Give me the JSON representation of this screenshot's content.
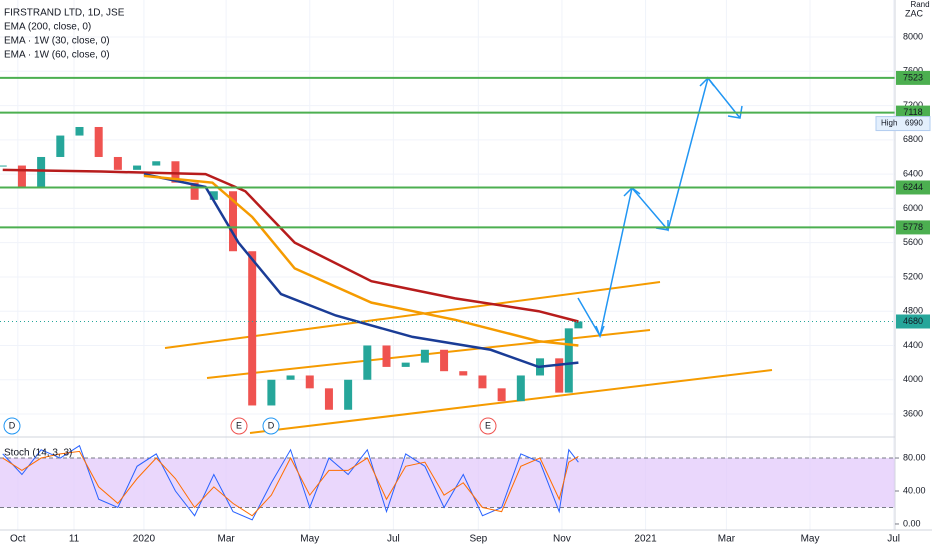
{
  "chart_data": {
    "type": "candlestick",
    "title": "FIRSTRAND LTD, 1D, JSE",
    "currency": "Rand",
    "unit": "ZAC",
    "x": [
      "2019-09-20",
      "2019-10-04",
      "2019-10-18",
      "2019-11-01",
      "2019-11-15",
      "2019-11-29",
      "2019-12-13",
      "2019-12-27",
      "2020-01-10",
      "2020-01-24",
      "2020-02-07",
      "2020-02-21",
      "2020-03-06",
      "2020-03-20",
      "2020-04-03",
      "2020-04-17",
      "2020-05-01",
      "2020-05-15",
      "2020-05-29",
      "2020-06-12",
      "2020-06-26",
      "2020-07-10",
      "2020-07-24",
      "2020-08-07",
      "2020-08-21",
      "2020-09-04",
      "2020-09-18",
      "2020-10-02",
      "2020-10-16",
      "2020-10-30",
      "2020-11-06",
      "2020-11-13"
    ],
    "values": [
      6500,
      6250,
      6600,
      6850,
      6950,
      6600,
      6450,
      6500,
      6550,
      6300,
      6100,
      6200,
      5500,
      3700,
      4000,
      4050,
      3900,
      3650,
      4000,
      4400,
      4150,
      4200,
      4350,
      4100,
      4050,
      3900,
      3750,
      4050,
      4250,
      3850,
      4600,
      4680
    ],
    "up_color": "#26a69a",
    "down_color": "#ef5350",
    "xlim": [
      "2019-09-18",
      "2021-07-02"
    ],
    "xticks": [
      {
        "value": "2019-10-01",
        "label": "Oct"
      },
      {
        "value": "2019-11-11",
        "label": "11"
      },
      {
        "value": "2020-01-01",
        "label": "2020"
      },
      {
        "value": "2020-03-01",
        "label": "Mar"
      },
      {
        "value": "2020-05-01",
        "label": "May"
      },
      {
        "value": "2020-07-01",
        "label": "Jul"
      },
      {
        "value": "2020-09-01",
        "label": "Sep"
      },
      {
        "value": "2020-11-01",
        "label": "Nov"
      },
      {
        "value": "2021-01-01",
        "label": "2021"
      },
      {
        "value": "2021-03-01",
        "label": "Mar"
      },
      {
        "value": "2021-05-01",
        "label": "May"
      },
      {
        "value": "2021-07-01",
        "label": "Jul"
      }
    ],
    "ylim": [
      3332,
      8432
    ],
    "yticks": [
      3600,
      4000,
      4400,
      4800,
      5200,
      5600,
      6000,
      6400,
      6800,
      7200,
      7600,
      8000
    ],
    "grid": true,
    "series": [
      {
        "name": "EMA (200, close, 0)",
        "color": "#b71c1c",
        "x": [
          "2019-09-20",
          "2019-12-01",
          "2020-02-15",
          "2020-03-15",
          "2020-04-20",
          "2020-06-15",
          "2020-08-15",
          "2020-10-15",
          "2020-11-13"
        ],
        "values": [
          6450,
          6430,
          6400,
          6200,
          5600,
          5150,
          4950,
          4800,
          4680
        ]
      },
      {
        "name": "EMA · 1W (30, close, 0)",
        "color": "#1a3c96",
        "x": [
          "2020-01-01",
          "2020-02-15",
          "2020-03-10",
          "2020-04-10",
          "2020-05-20",
          "2020-07-15",
          "2020-09-10",
          "2020-10-15",
          "2020-11-13"
        ],
        "values": [
          6400,
          6250,
          5600,
          5000,
          4750,
          4500,
          4350,
          4150,
          4200
        ]
      },
      {
        "name": "EMA · 1W (60, close, 0)",
        "color": "#f59b00",
        "x": [
          "2020-01-01",
          "2020-02-20",
          "2020-03-20",
          "2020-04-20",
          "2020-06-15",
          "2020-08-15",
          "2020-10-15",
          "2020-11-13"
        ],
        "values": [
          6380,
          6300,
          5900,
          5300,
          4900,
          4700,
          4450,
          4400
        ]
      }
    ],
    "levels": [
      7523,
      7118,
      6244,
      5778
    ],
    "level_color": "#4caf50",
    "last_price": 4680,
    "high": {
      "label": "High",
      "value": 6990
    },
    "events": [
      "D",
      "E",
      "D",
      "E"
    ],
    "stoch": {
      "title": "Stoch (14, 3, 3)",
      "ylim": [
        -7.3,
        105.5
      ],
      "yticks": [
        {
          "value": 0,
          "label": "0.00"
        },
        {
          "value": 40,
          "label": "40.00"
        },
        {
          "value": 80,
          "label": "80.00"
        }
      ],
      "bands": [
        20,
        80
      ],
      "band_color": "#e1c6fb",
      "series": [
        {
          "color": "#2962ff",
          "values": [
            85,
            60,
            90,
            80,
            95,
            30,
            20,
            70,
            85,
            40,
            10,
            60,
            15,
            5,
            50,
            90,
            20,
            80,
            60,
            90,
            15,
            85,
            70,
            20,
            60,
            10,
            20,
            85,
            75,
            15,
            90,
            75
          ]
        },
        {
          "color": "#ff6d00",
          "values": [
            80,
            65,
            80,
            85,
            88,
            45,
            25,
            55,
            80,
            55,
            20,
            45,
            25,
            10,
            35,
            80,
            35,
            65,
            65,
            80,
            30,
            70,
            75,
            35,
            50,
            20,
            15,
            70,
            80,
            30,
            75,
            82
          ]
        }
      ]
    }
  }
}
